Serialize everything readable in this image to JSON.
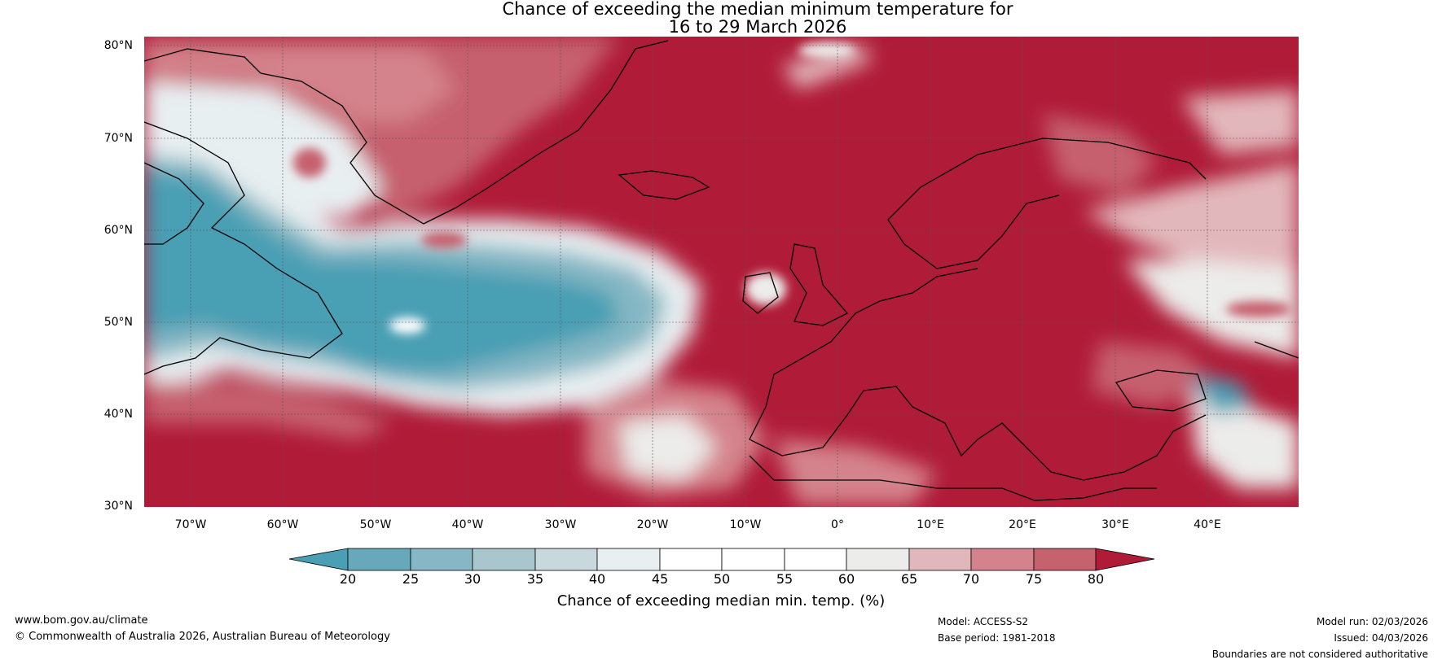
{
  "title": {
    "line1": "Chance of exceeding the median minimum temperature for",
    "line2": "16 to 29 March 2026"
  },
  "latitude_labels": [
    "80°N",
    "70°N",
    "60°N",
    "50°N",
    "40°N",
    "30°N"
  ],
  "longitude_labels": [
    "70°W",
    "60°W",
    "50°W",
    "40°W",
    "30°W",
    "20°W",
    "10°W",
    "0°",
    "10°E",
    "20°E",
    "30°E",
    "40°E"
  ],
  "colorbar": {
    "ticks": [
      "20",
      "25",
      "30",
      "35",
      "40",
      "45",
      "50",
      "55",
      "60",
      "65",
      "70",
      "75",
      "80"
    ],
    "label": "Chance of exceeding median min. temp. (%)",
    "colors": [
      "#4a9fb4",
      "#67a9ba",
      "#85b7c4",
      "#a8c6cc",
      "#c9d8dc",
      "#e8eff1",
      "#ffffff",
      "#ffffff",
      "#ececea",
      "#e2b7bb",
      "#d4838c",
      "#c6616e",
      "#bb3f51",
      "#b01b38"
    ]
  },
  "footer": {
    "website": "www.bom.gov.au/climate",
    "copyright": "© Commonwealth of Australia 2026, Australian Bureau of Meteorology",
    "model": "Model: ACCESS-S2",
    "base_period": "Base period: 1981-2018",
    "model_run": "Model run: 02/03/2026",
    "issued": "Issued: 04/03/2026",
    "disclaimer": "Boundaries are not considered authoritative"
  }
}
